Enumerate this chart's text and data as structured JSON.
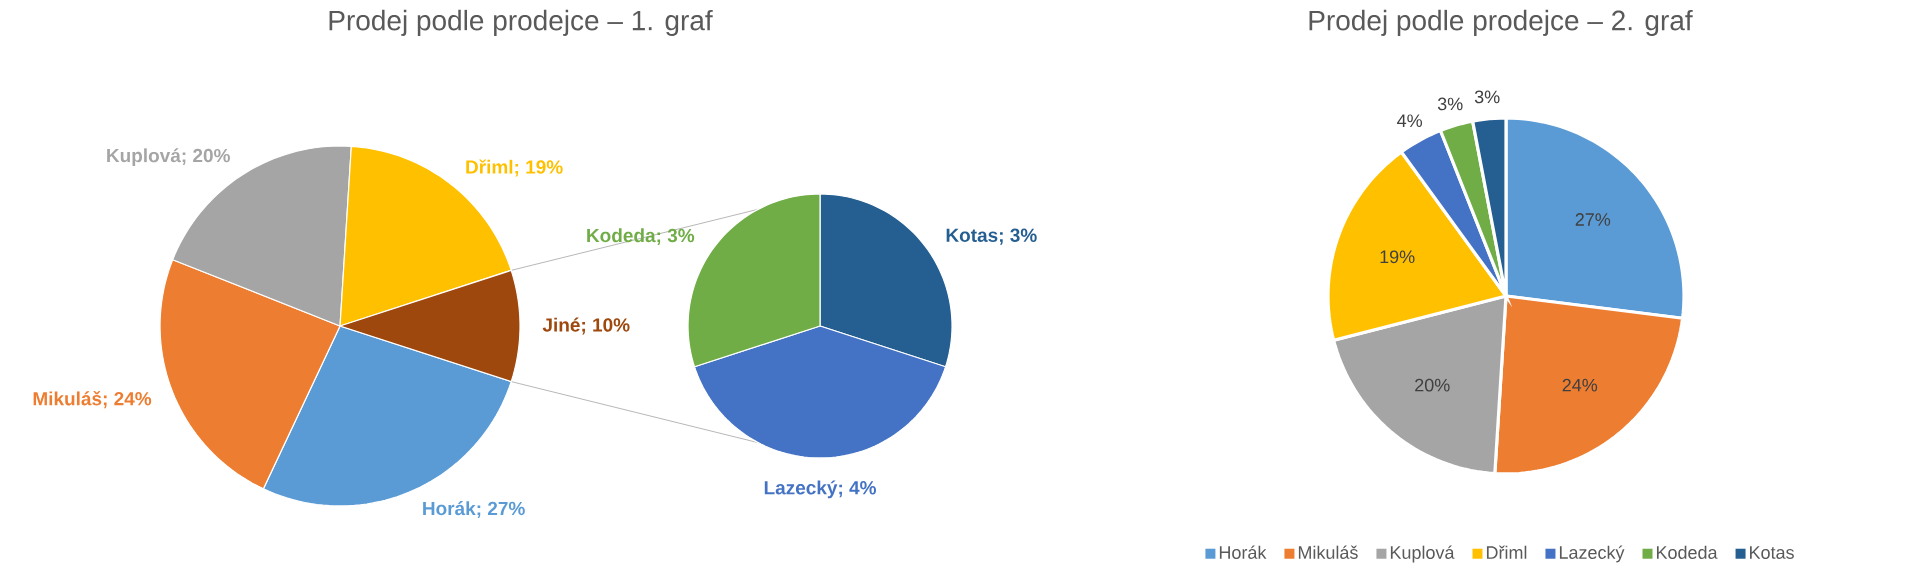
{
  "chart_data": [
    {
      "type": "pie",
      "title": "Prodej podle prodejce – 1. graf",
      "categories": [
        "Horák",
        "Mikuláš",
        "Kuplová",
        "Dřiml",
        "Jiné"
      ],
      "values": [
        27,
        24,
        20,
        19,
        10
      ],
      "value_labels": [
        "; 27%",
        "; 24%",
        "; 20%",
        "; 19%",
        "; 10%"
      ],
      "colors": [
        "#5b9bd5",
        "#ed7d31",
        "#a5a5a5",
        "#ffc000",
        "#9e480e"
      ]
    },
    {
      "type": "pie",
      "categories": [
        "Kotas",
        "Lazecký",
        "Kodeda"
      ],
      "values": [
        3,
        4,
        3
      ],
      "value_labels": [
        "; 3%",
        "; 4%",
        "; 3%"
      ],
      "colors": [
        "#255e91",
        "#4472c4",
        "#70ad47"
      ]
    },
    {
      "type": "pie",
      "title": "Prodej podle prodejce – 2. graf",
      "categories": [
        "Horák",
        "Mikuláš",
        "Kuplová",
        "Dřiml",
        "Lazecký",
        "Kodeda",
        "Kotas"
      ],
      "values": [
        27,
        24,
        20,
        19,
        4,
        3,
        3
      ],
      "value_labels": [
        "27%",
        "24%",
        "20%",
        "19%",
        "4%",
        "3%",
        "3%"
      ],
      "colors": [
        "#5b9bd5",
        "#ed7d31",
        "#a5a5a5",
        "#ffc000",
        "#4472c4",
        "#70ad47",
        "#255e91"
      ],
      "legend": "bottom"
    }
  ]
}
